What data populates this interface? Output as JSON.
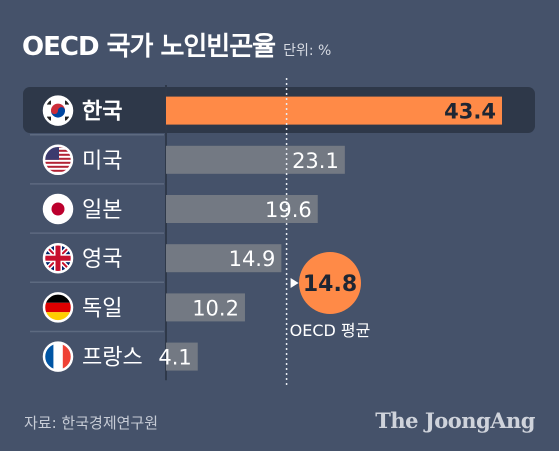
{
  "chart_data": {
    "type": "bar",
    "orientation": "horizontal",
    "title": "OECD 국가 노인빈곤율",
    "unit_label": "단위: %",
    "categories": [
      "한국",
      "미국",
      "일본",
      "영국",
      "독일",
      "프랑스"
    ],
    "values": [
      43.4,
      23.1,
      19.6,
      14.9,
      10.2,
      4.1
    ],
    "value_labels": [
      "43.4",
      "23.1",
      "19.6",
      "14.9",
      "10.2",
      "4.1"
    ],
    "highlight": "한국",
    "reference_line": {
      "value": 14.8,
      "value_label": "14.8",
      "label": "OECD 평균"
    },
    "xlim": [
      0,
      43.4
    ],
    "colors": {
      "highlight_bar": "#ff8a47",
      "bar": "#737983",
      "highlight_row": "#2e3849",
      "reference_circle": "#ff8a47",
      "background": "#45526a"
    }
  },
  "flags": [
    "korea-flag-icon",
    "usa-flag-icon",
    "japan-flag-icon",
    "uk-flag-icon",
    "germany-flag-icon",
    "france-flag-icon"
  ],
  "footer": {
    "source": "자료: 한국경제연구원",
    "brand": "The JoongAng"
  }
}
